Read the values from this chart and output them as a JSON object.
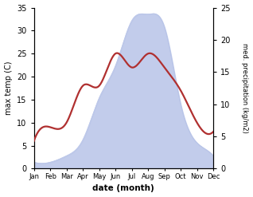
{
  "months": [
    "Jan",
    "Feb",
    "Mar",
    "Apr",
    "May",
    "Jun",
    "Jul",
    "Aug",
    "Sep",
    "Oct",
    "Nov",
    "Dec"
  ],
  "temp": [
    6,
    9,
    10,
    18,
    18,
    25,
    22,
    25,
    22,
    17,
    10,
    8
  ],
  "precip": [
    1.0,
    1.0,
    2.0,
    4.5,
    11,
    16,
    23,
    24,
    22,
    10,
    4,
    2.0
  ],
  "temp_color": "#b03030",
  "precip_fill_color": "#b8c4e8",
  "left_label": "max temp (C)",
  "right_label": "med. precipitation (kg/m2)",
  "xlabel": "date (month)",
  "left_ylim": [
    0,
    35
  ],
  "right_ylim": [
    0,
    25
  ],
  "left_yticks": [
    0,
    5,
    10,
    15,
    20,
    25,
    30,
    35
  ],
  "right_yticks": [
    0,
    5,
    10,
    15,
    20,
    25
  ],
  "bg_color": "#ffffff",
  "temp_linewidth": 1.6,
  "figure_width": 3.18,
  "figure_height": 2.47,
  "dpi": 100
}
